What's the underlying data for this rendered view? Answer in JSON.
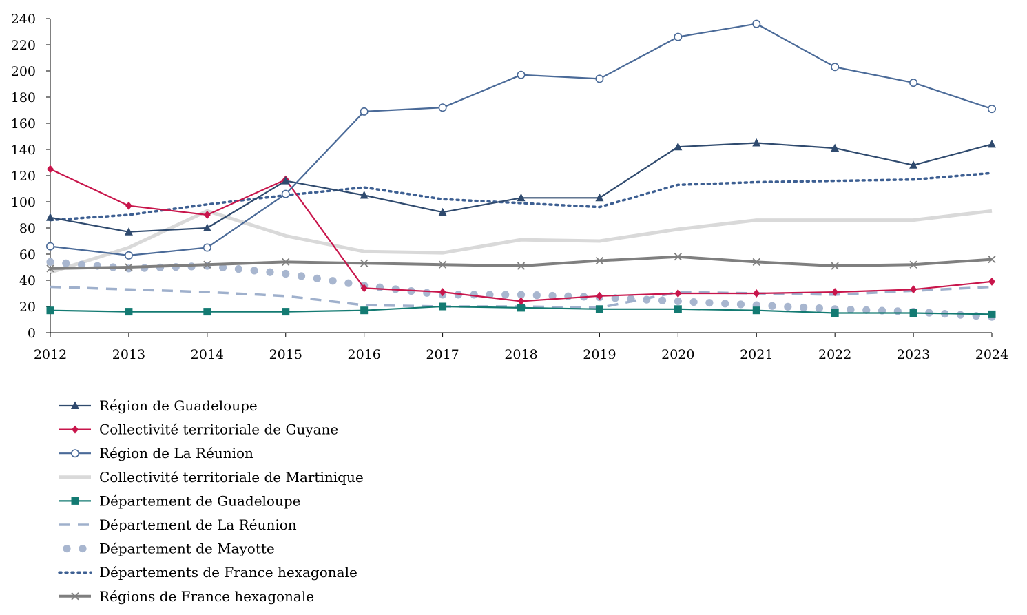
{
  "chart_data": {
    "type": "line",
    "title": "",
    "xlabel": "",
    "ylabel": "",
    "x": [
      2012,
      2013,
      2014,
      2015,
      2016,
      2017,
      2018,
      2019,
      2020,
      2021,
      2022,
      2023,
      2024
    ],
    "xtick_labels": [
      "2012",
      "2013",
      "2014",
      "2015",
      "2016",
      "2017",
      "2018",
      "2019",
      "2020",
      "2021",
      "2022",
      "2023",
      "2024"
    ],
    "ylim": [
      0,
      240
    ],
    "yticks": [
      0,
      20,
      40,
      60,
      80,
      100,
      120,
      140,
      160,
      180,
      200,
      220,
      240
    ],
    "ytick_labels": [
      "0",
      "20",
      "40",
      "60",
      "80",
      "100",
      "120",
      "140",
      "160",
      "180",
      "200",
      "220",
      "240"
    ],
    "grid": false,
    "legend_position": "bottom-left",
    "series": [
      {
        "name": "Région de Guadeloupe",
        "values": [
          88,
          77,
          80,
          116,
          105,
          92,
          103,
          103,
          142,
          145,
          141,
          128,
          144
        ],
        "color": "#2f4a6e",
        "marker": "triangle",
        "dash": "solid",
        "width": 2.2
      },
      {
        "name": "Collectivité territoriale de Guyane",
        "values": [
          125,
          97,
          90,
          117,
          34,
          31,
          24,
          28,
          30,
          30,
          31,
          33,
          39
        ],
        "color": "#c8154b",
        "marker": "diamond",
        "dash": "solid",
        "width": 2.2
      },
      {
        "name": "Région de La Réunion",
        "values": [
          66,
          59,
          65,
          106,
          169,
          172,
          197,
          194,
          226,
          236,
          203,
          191,
          171
        ],
        "color": "#4a6a98",
        "marker": "circle-open",
        "dash": "solid",
        "width": 2.2
      },
      {
        "name": "Collectivité territoriale de Martinique",
        "values": [
          46,
          65,
          93,
          74,
          62,
          61,
          71,
          70,
          79,
          86,
          86,
          86,
          93
        ],
        "color": "#d9d9d9",
        "marker": "none",
        "dash": "solid",
        "width": 5
      },
      {
        "name": "Département de Guadeloupe",
        "values": [
          17,
          16,
          16,
          16,
          17,
          20,
          19,
          18,
          18,
          17,
          15,
          15,
          14
        ],
        "color": "#137a72",
        "marker": "square",
        "dash": "solid",
        "width": 2.2
      },
      {
        "name": "Département de La Réunion",
        "values": [
          35,
          33,
          31,
          28,
          21,
          20,
          20,
          19,
          31,
          30,
          29,
          32,
          35
        ],
        "color": "#9fb0cc",
        "marker": "none",
        "dash": "long-dash",
        "width": 3.5
      },
      {
        "name": "Département de Mayotte",
        "values": [
          54,
          49,
          51,
          45,
          36,
          29,
          29,
          27,
          24,
          21,
          18,
          16,
          12
        ],
        "color": "#a8b6cf",
        "marker": "dots",
        "dash": "dots",
        "width": 10
      },
      {
        "name": "Départements de France hexagonale",
        "values": [
          86,
          90,
          98,
          105,
          111,
          102,
          99,
          96,
          113,
          115,
          116,
          117,
          122
        ],
        "color": "#3d5f92",
        "marker": "none",
        "dash": "dotted",
        "width": 3.5
      },
      {
        "name": "Régions de France hexagonale",
        "values": [
          49,
          50,
          52,
          54,
          53,
          52,
          51,
          55,
          58,
          54,
          51,
          52,
          56
        ],
        "color": "#7f7f7f",
        "marker": "x",
        "dash": "solid",
        "width": 4
      }
    ]
  }
}
